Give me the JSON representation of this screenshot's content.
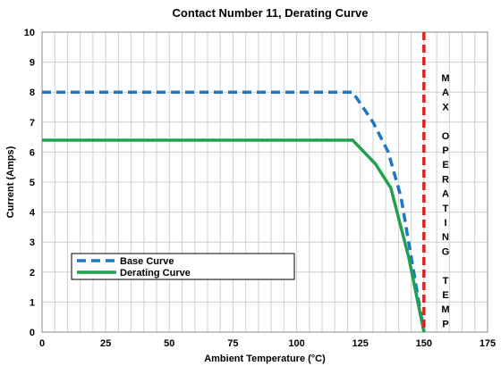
{
  "chart_data": {
    "type": "line",
    "title": "Contact Number 11, Derating Curve",
    "xlabel": "Ambient Temperature (°C)",
    "ylabel": "Current (Amps)",
    "xlim": [
      0,
      175
    ],
    "ylim": [
      0,
      10
    ],
    "xticks": [
      0,
      25,
      50,
      75,
      100,
      125,
      150,
      175
    ],
    "yticks": [
      0,
      1,
      2,
      3,
      4,
      5,
      6,
      7,
      8,
      9,
      10
    ],
    "grid": true,
    "legend_position": "lower-left",
    "series": [
      {
        "name": "Base Curve",
        "color": "#1f77c4",
        "style": "dashed",
        "x": [
          0,
          122,
          130,
          136,
          141,
          146,
          150
        ],
        "y": [
          8,
          8,
          7,
          6,
          4.5,
          2,
          0
        ]
      },
      {
        "name": "Derating Curve",
        "color": "#21a050",
        "style": "solid",
        "x": [
          0,
          122,
          131,
          137,
          144,
          150
        ],
        "y": [
          6.4,
          6.4,
          5.6,
          4.8,
          2.5,
          0
        ]
      }
    ],
    "vline": {
      "x": 150,
      "color": "#e02020",
      "style": "dashed"
    },
    "annotation": {
      "letters": [
        "M",
        "A",
        "X",
        "",
        "O",
        "P",
        "E",
        "R",
        "A",
        "T",
        "I",
        "N",
        "G",
        "",
        "T",
        "E",
        "M",
        "P"
      ]
    }
  }
}
